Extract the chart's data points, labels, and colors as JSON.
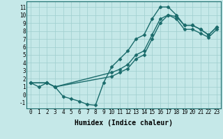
{
  "title": "",
  "xlabel": "Humidex (Indice chaleur)",
  "bg_color": "#c5e8e8",
  "line_color": "#1a6b6b",
  "xlim": [
    -0.5,
    23.5
  ],
  "ylim": [
    -1.7,
    11.7
  ],
  "xticks": [
    0,
    1,
    2,
    3,
    4,
    5,
    6,
    7,
    8,
    9,
    10,
    11,
    12,
    13,
    14,
    15,
    16,
    17,
    18,
    19,
    20,
    21,
    22,
    23
  ],
  "yticks": [
    -1,
    0,
    1,
    2,
    3,
    4,
    5,
    6,
    7,
    8,
    9,
    10,
    11
  ],
  "lines": [
    {
      "x": [
        0,
        1,
        2,
        3,
        4,
        5,
        6,
        7,
        8,
        9,
        10,
        11,
        12,
        13,
        14,
        15,
        16,
        17,
        18,
        19,
        20,
        21,
        22,
        23
      ],
      "y": [
        1.5,
        1.0,
        1.5,
        1.0,
        -0.2,
        -0.5,
        -0.8,
        -1.2,
        -1.3,
        1.5,
        3.5,
        4.5,
        5.5,
        7.0,
        7.5,
        9.5,
        11.0,
        11.0,
        10.0,
        8.7,
        8.7,
        8.2,
        7.5,
        8.5
      ]
    },
    {
      "x": [
        0,
        2,
        3,
        10,
        11,
        12,
        13,
        14,
        15,
        16,
        17,
        18,
        19,
        20,
        21,
        22,
        23
      ],
      "y": [
        1.5,
        1.5,
        1.0,
        2.8,
        3.2,
        3.8,
        5.0,
        5.5,
        7.5,
        9.5,
        10.0,
        9.8,
        8.7,
        8.7,
        8.2,
        7.5,
        8.5
      ]
    },
    {
      "x": [
        0,
        2,
        3,
        10,
        11,
        12,
        13,
        14,
        15,
        16,
        17,
        18,
        19,
        20,
        21,
        22,
        23
      ],
      "y": [
        1.5,
        1.5,
        1.0,
        2.3,
        2.8,
        3.3,
        4.5,
        5.0,
        7.0,
        9.0,
        10.0,
        9.5,
        8.2,
        8.2,
        7.7,
        7.2,
        8.2
      ]
    }
  ],
  "grid_color": "#9ecece",
  "marker": "D",
  "markersize": 2.5,
  "linewidth": 1.0,
  "tick_fontsize": 5.5,
  "xlabel_fontsize": 7.0
}
